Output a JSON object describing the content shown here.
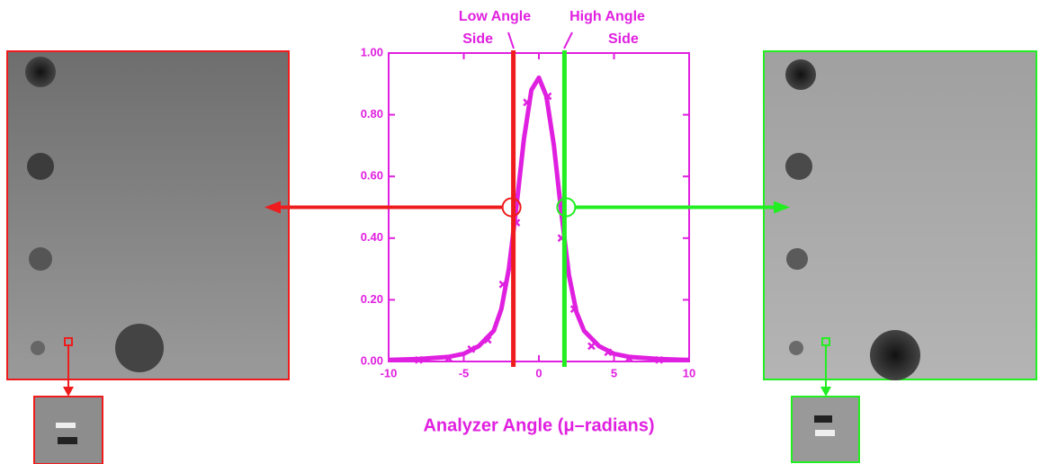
{
  "chart_data": {
    "type": "line",
    "x_label": "Analyzer Angle (μ–radians)",
    "annotations": [
      [
        "Low Angle",
        "Side"
      ],
      [
        "High Angle",
        "Side"
      ]
    ],
    "color": "#e020e0",
    "xlim": [
      -10,
      10
    ],
    "ylim": [
      0,
      1
    ],
    "xticks": [
      -10,
      -5,
      0,
      5,
      10
    ],
    "yticks": [
      {
        "value": 0,
        "label": "0.00"
      },
      {
        "value": 0.2,
        "label": "0.20"
      },
      {
        "value": 0.4,
        "label": "0.40"
      },
      {
        "value": 0.6,
        "label": "0.60"
      },
      {
        "value": 0.8,
        "label": "0.80"
      },
      {
        "value": 1,
        "label": "1.00"
      }
    ],
    "x": [
      -10,
      -8,
      -6,
      -5,
      -4,
      -3,
      -2.5,
      -2,
      -1.5,
      -1,
      -0.5,
      0,
      0.5,
      1,
      1.5,
      2,
      2.5,
      3,
      4,
      5,
      6,
      8,
      10
    ],
    "values": [
      0.005,
      0.008,
      0.015,
      0.025,
      0.05,
      0.1,
      0.17,
      0.3,
      0.5,
      0.72,
      0.88,
      0.92,
      0.86,
      0.7,
      0.48,
      0.28,
      0.16,
      0.1,
      0.05,
      0.025,
      0.015,
      0.008,
      0.005
    ],
    "points": {
      "x": [
        -8,
        -6,
        -4.5,
        -3.4,
        -2.4,
        -1.5,
        -0.8,
        0.6,
        1.5,
        2.35,
        3.5,
        4.6,
        6,
        8
      ],
      "values": [
        0.005,
        0.01,
        0.04,
        0.07,
        0.25,
        0.45,
        0.84,
        0.86,
        0.4,
        0.17,
        0.05,
        0.03,
        0.01,
        0.005
      ]
    },
    "vlines": [
      {
        "x": -1.7,
        "y": 0.5,
        "color": "#ee1c1c"
      },
      {
        "x": 1.7,
        "y": 0.5,
        "color": "#22ee22"
      }
    ]
  }
}
